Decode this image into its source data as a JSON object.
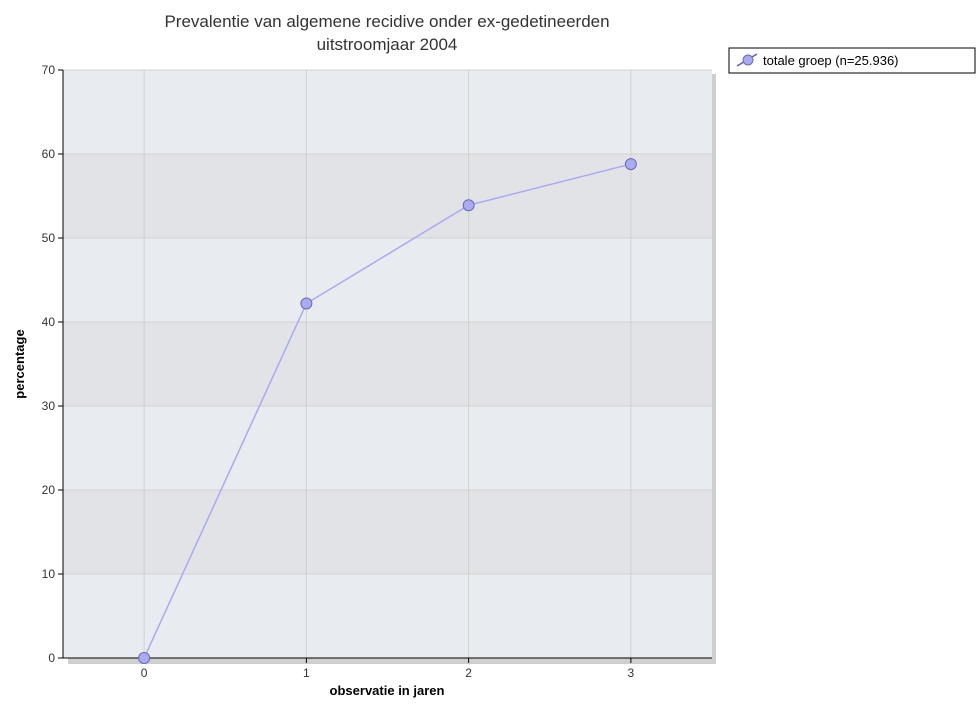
{
  "colors": {
    "series_line": "#aaaaf2",
    "series_marker_fill": "#aaaaee",
    "series_marker_stroke": "#6a6ab8",
    "band_dark": "#e2e3e6",
    "band_light": "#e8ebf0",
    "grid": "#d0d0d0",
    "axis": "#000000"
  },
  "chart_data": {
    "type": "line",
    "title": [
      "Prevalentie van algemene recidive onder ex-gedetineerden",
      "uitstroomjaar 2004"
    ],
    "xlabel": "observatie in jaren",
    "ylabel": "percentage",
    "x_ticks": [
      "0",
      "1",
      "2",
      "3"
    ],
    "xlim": [
      -0.5,
      3.5
    ],
    "ylim": [
      0,
      70
    ],
    "y_ticks": [
      "0",
      "10",
      "20",
      "30",
      "40",
      "50",
      "60",
      "70"
    ],
    "grid": true,
    "legend_position": "top-right, outside plot",
    "series": [
      {
        "name": "totale groep (n=25.936)",
        "x": [
          0,
          1,
          2,
          3
        ],
        "y": [
          0,
          42.2,
          53.9,
          58.8
        ]
      }
    ]
  }
}
